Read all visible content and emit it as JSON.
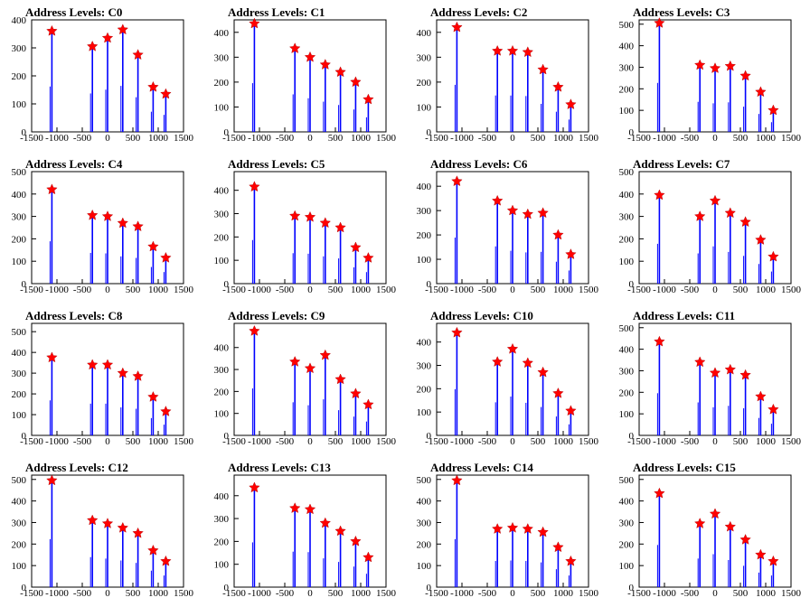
{
  "chart_data": [
    {
      "type": "bar",
      "title": "Address Levels: C0",
      "x": [
        -1100,
        -300,
        0,
        300,
        600,
        900,
        1150
      ],
      "values": [
        360,
        305,
        335,
        365,
        275,
        160,
        135
      ],
      "xlim": [
        -1500,
        1500
      ],
      "ylim": [
        0,
        400
      ],
      "yticks": [
        0,
        100,
        200,
        300,
        400
      ]
    },
    {
      "type": "bar",
      "title": "Address Levels: C1",
      "x": [
        -1100,
        -300,
        0,
        300,
        600,
        900,
        1150
      ],
      "values": [
        435,
        335,
        300,
        270,
        240,
        200,
        130
      ],
      "xlim": [
        -1500,
        1500
      ],
      "ylim": [
        0,
        450
      ],
      "yticks": [
        0,
        100,
        200,
        300,
        400
      ]
    },
    {
      "type": "bar",
      "title": "Address Levels: C2",
      "x": [
        -1100,
        -300,
        0,
        300,
        600,
        900,
        1150
      ],
      "values": [
        420,
        325,
        325,
        320,
        250,
        180,
        110
      ],
      "xlim": [
        -1500,
        1500
      ],
      "ylim": [
        0,
        450
      ],
      "yticks": [
        0,
        100,
        200,
        300,
        400
      ]
    },
    {
      "type": "bar",
      "title": "Address Levels: C3",
      "x": [
        -1100,
        -300,
        0,
        300,
        600,
        900,
        1150
      ],
      "values": [
        505,
        310,
        295,
        305,
        260,
        185,
        100
      ],
      "xlim": [
        -1500,
        1500
      ],
      "ylim": [
        0,
        520
      ],
      "yticks": [
        0,
        100,
        200,
        300,
        400,
        500
      ]
    },
    {
      "type": "bar",
      "title": "Address Levels: C4",
      "x": [
        -1100,
        -300,
        0,
        300,
        600,
        900,
        1150
      ],
      "values": [
        420,
        305,
        300,
        270,
        255,
        165,
        115
      ],
      "xlim": [
        -1500,
        1500
      ],
      "ylim": [
        0,
        500
      ],
      "yticks": [
        0,
        100,
        200,
        300,
        400,
        500
      ]
    },
    {
      "type": "bar",
      "title": "Address Levels: C5",
      "x": [
        -1100,
        -300,
        0,
        300,
        600,
        900,
        1150
      ],
      "values": [
        415,
        290,
        285,
        260,
        240,
        155,
        110
      ],
      "xlim": [
        -1500,
        1500
      ],
      "ylim": [
        0,
        480
      ],
      "yticks": [
        0,
        100,
        200,
        300,
        400
      ]
    },
    {
      "type": "bar",
      "title": "Address Levels: C6",
      "x": [
        -1100,
        -300,
        0,
        300,
        600,
        900,
        1150
      ],
      "values": [
        420,
        340,
        300,
        285,
        290,
        200,
        120
      ],
      "xlim": [
        -1500,
        1500
      ],
      "ylim": [
        0,
        460
      ],
      "yticks": [
        0,
        100,
        200,
        300,
        400
      ]
    },
    {
      "type": "bar",
      "title": "Address Levels: C7",
      "x": [
        -1100,
        -300,
        0,
        300,
        600,
        900,
        1150
      ],
      "values": [
        395,
        300,
        370,
        315,
        275,
        195,
        120
      ],
      "xlim": [
        -1500,
        1500
      ],
      "ylim": [
        0,
        500
      ],
      "yticks": [
        0,
        100,
        200,
        300,
        400,
        500
      ]
    },
    {
      "type": "bar",
      "title": "Address Levels: C8",
      "x": [
        -1100,
        -300,
        0,
        300,
        600,
        900,
        1150
      ],
      "values": [
        375,
        340,
        340,
        300,
        285,
        185,
        115
      ],
      "xlim": [
        -1500,
        1500
      ],
      "ylim": [
        0,
        540
      ],
      "yticks": [
        0,
        100,
        200,
        300,
        400,
        500
      ]
    },
    {
      "type": "bar",
      "title": "Address Levels: C9",
      "x": [
        -1100,
        -300,
        0,
        300,
        600,
        900,
        1150
      ],
      "values": [
        475,
        335,
        305,
        365,
        255,
        190,
        140
      ],
      "xlim": [
        -1500,
        1500
      ],
      "ylim": [
        0,
        510
      ],
      "yticks": [
        0,
        100,
        200,
        300,
        400
      ]
    },
    {
      "type": "bar",
      "title": "Address Levels: C10",
      "x": [
        -1100,
        -300,
        0,
        300,
        600,
        900,
        1150
      ],
      "values": [
        440,
        315,
        370,
        310,
        270,
        180,
        105
      ],
      "xlim": [
        -1500,
        1500
      ],
      "ylim": [
        0,
        480
      ],
      "yticks": [
        0,
        100,
        200,
        300,
        400
      ]
    },
    {
      "type": "bar",
      "title": "Address Levels: C11",
      "x": [
        -1100,
        -300,
        0,
        300,
        600,
        900,
        1150
      ],
      "values": [
        435,
        340,
        290,
        305,
        280,
        180,
        120
      ],
      "xlim": [
        -1500,
        1500
      ],
      "ylim": [
        0,
        520
      ],
      "yticks": [
        0,
        100,
        200,
        300,
        400,
        500
      ]
    },
    {
      "type": "bar",
      "title": "Address Levels: C12",
      "x": [
        -1100,
        -300,
        0,
        300,
        600,
        900,
        1150
      ],
      "values": [
        495,
        310,
        295,
        275,
        250,
        170,
        120
      ],
      "xlim": [
        -1500,
        1500
      ],
      "ylim": [
        0,
        520
      ],
      "yticks": [
        0,
        100,
        200,
        300,
        400,
        500
      ]
    },
    {
      "type": "bar",
      "title": "Address Levels: C13",
      "x": [
        -1100,
        -300,
        0,
        300,
        600,
        900,
        1150
      ],
      "values": [
        435,
        345,
        340,
        280,
        245,
        200,
        130
      ],
      "xlim": [
        -1500,
        1500
      ],
      "ylim": [
        0,
        490
      ],
      "yticks": [
        0,
        100,
        200,
        300,
        400
      ]
    },
    {
      "type": "bar",
      "title": "Address Levels: C14",
      "x": [
        -1100,
        -300,
        0,
        300,
        600,
        900,
        1150
      ],
      "values": [
        495,
        270,
        275,
        270,
        255,
        185,
        120
      ],
      "xlim": [
        -1500,
        1500
      ],
      "ylim": [
        0,
        520
      ],
      "yticks": [
        0,
        100,
        200,
        300,
        400,
        500
      ]
    },
    {
      "type": "bar",
      "title": "Address Levels: C15",
      "x": [
        -1100,
        -300,
        0,
        300,
        600,
        900,
        1150
      ],
      "values": [
        435,
        295,
        340,
        280,
        220,
        150,
        120
      ],
      "xlim": [
        -1500,
        1500
      ],
      "ylim": [
        0,
        520
      ],
      "yticks": [
        0,
        100,
        200,
        300,
        400,
        500
      ]
    }
  ],
  "xticks": [
    "-1500",
    "-1000",
    "-500",
    "0",
    "500",
    "1000",
    "1500"
  ],
  "xtick_values": [
    -1500,
    -1000,
    -500,
    0,
    500,
    1000,
    1500
  ],
  "colors": {
    "bar": "#0000ff",
    "marker": "#ff0000",
    "frame": "#000000"
  }
}
